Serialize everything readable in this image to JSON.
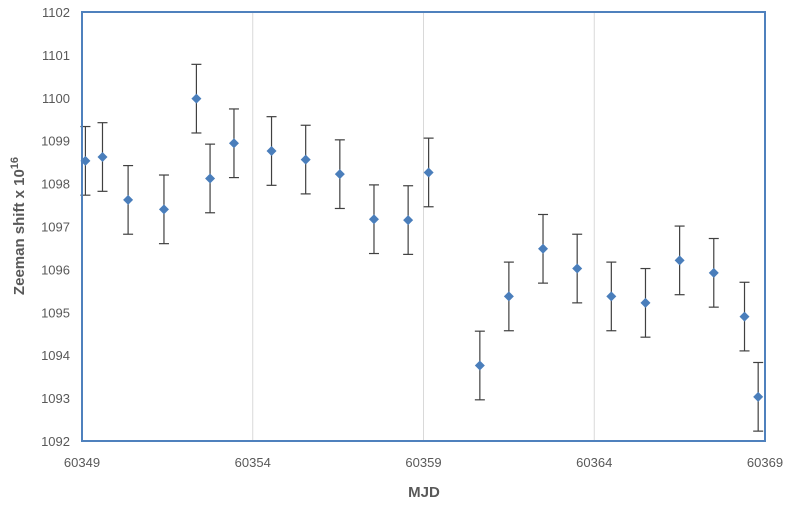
{
  "chart_data": {
    "type": "scatter",
    "title": "",
    "xlabel": "MJD",
    "ylabel": {
      "text": "Zeeman shift x 10",
      "superscript": "16"
    },
    "xlim": [
      60349,
      60369
    ],
    "ylim": [
      1092,
      1102
    ],
    "x_ticks": [
      "60349",
      "60354",
      "60359",
      "60364",
      "60369"
    ],
    "y_ticks": [
      "1092",
      "1093",
      "1094",
      "1095",
      "1096",
      "1097",
      "1098",
      "1099",
      "1100",
      "1101",
      "1102"
    ],
    "grid": "vertical",
    "legend": "none",
    "marker_color": "#4a7ebb",
    "frame_color": "#4f81bd",
    "points": [
      {
        "x": 60349.1,
        "y": 1098.53,
        "err": 0.8
      },
      {
        "x": 60349.6,
        "y": 1098.62,
        "err": 0.8
      },
      {
        "x": 60350.35,
        "y": 1097.62,
        "err": 0.8
      },
      {
        "x": 60351.4,
        "y": 1097.4,
        "err": 0.8
      },
      {
        "x": 60352.35,
        "y": 1099.98,
        "err": 0.8
      },
      {
        "x": 60352.75,
        "y": 1098.12,
        "err": 0.8
      },
      {
        "x": 60353.45,
        "y": 1098.94,
        "err": 0.8
      },
      {
        "x": 60354.55,
        "y": 1098.76,
        "err": 0.8
      },
      {
        "x": 60355.55,
        "y": 1098.56,
        "err": 0.8
      },
      {
        "x": 60356.55,
        "y": 1098.22,
        "err": 0.8
      },
      {
        "x": 60357.55,
        "y": 1097.17,
        "err": 0.8
      },
      {
        "x": 60358.55,
        "y": 1097.15,
        "err": 0.8
      },
      {
        "x": 60359.15,
        "y": 1098.26,
        "err": 0.8
      },
      {
        "x": 60360.65,
        "y": 1093.76,
        "err": 0.8
      },
      {
        "x": 60361.5,
        "y": 1095.37,
        "err": 0.8
      },
      {
        "x": 60362.5,
        "y": 1096.48,
        "err": 0.8
      },
      {
        "x": 60363.5,
        "y": 1096.02,
        "err": 0.8
      },
      {
        "x": 60364.5,
        "y": 1095.37,
        "err": 0.8
      },
      {
        "x": 60365.5,
        "y": 1095.22,
        "err": 0.8
      },
      {
        "x": 60366.5,
        "y": 1096.21,
        "err": 0.8
      },
      {
        "x": 60367.5,
        "y": 1095.92,
        "err": 0.8
      },
      {
        "x": 60368.4,
        "y": 1094.9,
        "err": 0.8
      },
      {
        "x": 60368.8,
        "y": 1093.03,
        "err": 0.8
      }
    ]
  }
}
